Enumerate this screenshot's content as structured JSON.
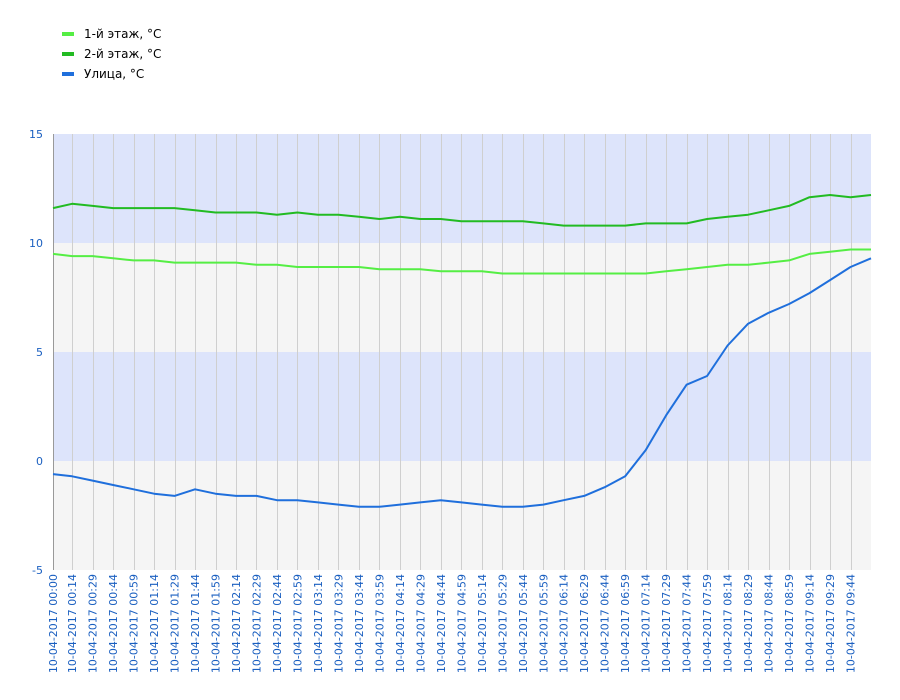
{
  "legend": [
    {
      "label": "1-й этаж, °C",
      "color": "#55ee44"
    },
    {
      "label": "2-й этаж, °C",
      "color": "#22bb22"
    },
    {
      "label": "Улица, °C",
      "color": "#1f6fdc"
    }
  ],
  "chart_data": {
    "type": "line",
    "title": "",
    "xlabel": "",
    "ylabel": "",
    "ylim": [
      -5,
      15
    ],
    "yticks": [
      15,
      10,
      5,
      0,
      -5
    ],
    "grid": true,
    "legend_position": "top-left",
    "band_colors": [
      "#dde4fb",
      "#f5f5f5"
    ],
    "x_unit": "minutes",
    "x_start": "10-04-2017 00:00",
    "x_end": "10-04-2017 09:59",
    "x_ticks": [
      "10-04-2017 00:00",
      "10-04-2017 00:14",
      "10-04-2017 00:29",
      "10-04-2017 00:44",
      "10-04-2017 00:59",
      "10-04-2017 01:14",
      "10-04-2017 01:29",
      "10-04-2017 01:44",
      "10-04-2017 01:59",
      "10-04-2017 02:14",
      "10-04-2017 02:29",
      "10-04-2017 02:44",
      "10-04-2017 02:59",
      "10-04-2017 03:14",
      "10-04-2017 03:29",
      "10-04-2017 03:44",
      "10-04-2017 03:59",
      "10-04-2017 04:14",
      "10-04-2017 04:29",
      "10-04-2017 04:44",
      "10-04-2017 04:59",
      "10-04-2017 05:14",
      "10-04-2017 05:29",
      "10-04-2017 05:44",
      "10-04-2017 05:59",
      "10-04-2017 06:14",
      "10-04-2017 06:29",
      "10-04-2017 06:44",
      "10-04-2017 06:59",
      "10-04-2017 07:14",
      "10-04-2017 07:29",
      "10-04-2017 07:44",
      "10-04-2017 07:59",
      "10-04-2017 08:14",
      "10-04-2017 08:29",
      "10-04-2017 08:44",
      "10-04-2017 08:59",
      "10-04-2017 09:14",
      "10-04-2017 09:29",
      "10-04-2017 09:44"
    ],
    "series": [
      {
        "name": "2-й этаж, °C",
        "color": "#22bb22",
        "x": [
          "10-04-2017 00:00",
          "10-04-2017 00:14",
          "10-04-2017 00:29",
          "10-04-2017 00:44",
          "10-04-2017 00:59",
          "10-04-2017 01:14",
          "10-04-2017 01:29",
          "10-04-2017 01:44",
          "10-04-2017 01:59",
          "10-04-2017 02:14",
          "10-04-2017 02:29",
          "10-04-2017 02:44",
          "10-04-2017 02:59",
          "10-04-2017 03:14",
          "10-04-2017 03:29",
          "10-04-2017 03:44",
          "10-04-2017 03:59",
          "10-04-2017 04:14",
          "10-04-2017 04:29",
          "10-04-2017 04:44",
          "10-04-2017 04:59",
          "10-04-2017 05:14",
          "10-04-2017 05:29",
          "10-04-2017 05:44",
          "10-04-2017 05:59",
          "10-04-2017 06:14",
          "10-04-2017 06:29",
          "10-04-2017 06:44",
          "10-04-2017 06:59",
          "10-04-2017 07:14",
          "10-04-2017 07:29",
          "10-04-2017 07:44",
          "10-04-2017 07:59",
          "10-04-2017 08:14",
          "10-04-2017 08:29",
          "10-04-2017 08:44",
          "10-04-2017 08:59",
          "10-04-2017 09:14",
          "10-04-2017 09:29",
          "10-04-2017 09:44",
          "10-04-2017 09:59"
        ],
        "values": [
          11.6,
          11.8,
          11.7,
          11.6,
          11.6,
          11.6,
          11.6,
          11.5,
          11.4,
          11.4,
          11.4,
          11.3,
          11.4,
          11.3,
          11.3,
          11.2,
          11.1,
          11.2,
          11.1,
          11.1,
          11.0,
          11.0,
          11.0,
          11.0,
          10.9,
          10.8,
          10.8,
          10.8,
          10.8,
          10.9,
          10.9,
          10.9,
          11.1,
          11.2,
          11.3,
          11.5,
          11.7,
          12.1,
          12.2,
          12.1,
          12.2
        ]
      },
      {
        "name": "1-й этаж, °C",
        "color": "#55ee44",
        "x": [
          "10-04-2017 00:00",
          "10-04-2017 00:14",
          "10-04-2017 00:29",
          "10-04-2017 00:44",
          "10-04-2017 00:59",
          "10-04-2017 01:14",
          "10-04-2017 01:29",
          "10-04-2017 01:44",
          "10-04-2017 01:59",
          "10-04-2017 02:14",
          "10-04-2017 02:29",
          "10-04-2017 02:44",
          "10-04-2017 02:59",
          "10-04-2017 03:14",
          "10-04-2017 03:29",
          "10-04-2017 03:44",
          "10-04-2017 03:59",
          "10-04-2017 04:14",
          "10-04-2017 04:29",
          "10-04-2017 04:44",
          "10-04-2017 04:59",
          "10-04-2017 05:14",
          "10-04-2017 05:29",
          "10-04-2017 05:44",
          "10-04-2017 05:59",
          "10-04-2017 06:14",
          "10-04-2017 06:29",
          "10-04-2017 06:44",
          "10-04-2017 06:59",
          "10-04-2017 07:14",
          "10-04-2017 07:29",
          "10-04-2017 07:44",
          "10-04-2017 07:59",
          "10-04-2017 08:14",
          "10-04-2017 08:29",
          "10-04-2017 08:44",
          "10-04-2017 08:59",
          "10-04-2017 09:14",
          "10-04-2017 09:29",
          "10-04-2017 09:44",
          "10-04-2017 09:59"
        ],
        "values": [
          9.5,
          9.4,
          9.4,
          9.3,
          9.2,
          9.2,
          9.1,
          9.1,
          9.1,
          9.1,
          9.0,
          9.0,
          8.9,
          8.9,
          8.9,
          8.9,
          8.8,
          8.8,
          8.8,
          8.7,
          8.7,
          8.7,
          8.6,
          8.6,
          8.6,
          8.6,
          8.6,
          8.6,
          8.6,
          8.6,
          8.7,
          8.8,
          8.9,
          9.0,
          9.0,
          9.1,
          9.2,
          9.5,
          9.6,
          9.7,
          9.7
        ]
      },
      {
        "name": "Улица, °C",
        "color": "#1f6fdc",
        "x": [
          "10-04-2017 00:00",
          "10-04-2017 00:14",
          "10-04-2017 00:29",
          "10-04-2017 00:44",
          "10-04-2017 00:59",
          "10-04-2017 01:14",
          "10-04-2017 01:29",
          "10-04-2017 01:44",
          "10-04-2017 01:59",
          "10-04-2017 02:14",
          "10-04-2017 02:29",
          "10-04-2017 02:44",
          "10-04-2017 02:59",
          "10-04-2017 03:14",
          "10-04-2017 03:29",
          "10-04-2017 03:44",
          "10-04-2017 03:59",
          "10-04-2017 04:14",
          "10-04-2017 04:29",
          "10-04-2017 04:44",
          "10-04-2017 04:59",
          "10-04-2017 05:14",
          "10-04-2017 05:29",
          "10-04-2017 05:44",
          "10-04-2017 05:59",
          "10-04-2017 06:14",
          "10-04-2017 06:29",
          "10-04-2017 06:44",
          "10-04-2017 06:59",
          "10-04-2017 07:14",
          "10-04-2017 07:29",
          "10-04-2017 07:44",
          "10-04-2017 07:59",
          "10-04-2017 08:14",
          "10-04-2017 08:29",
          "10-04-2017 08:44",
          "10-04-2017 08:59",
          "10-04-2017 09:14",
          "10-04-2017 09:29",
          "10-04-2017 09:44",
          "10-04-2017 09:59"
        ],
        "values": [
          -0.6,
          -0.7,
          -0.9,
          -1.1,
          -1.3,
          -1.5,
          -1.6,
          -1.3,
          -1.5,
          -1.6,
          -1.6,
          -1.8,
          -1.8,
          -1.9,
          -2.0,
          -2.1,
          -2.1,
          -2.0,
          -1.9,
          -1.8,
          -1.9,
          -2.0,
          -2.1,
          -2.1,
          -2.0,
          -1.8,
          -1.6,
          -1.2,
          -0.7,
          0.5,
          2.1,
          3.5,
          3.9,
          5.3,
          6.3,
          6.8,
          7.2,
          7.7,
          8.3,
          8.9,
          9.3
        ]
      }
    ]
  }
}
